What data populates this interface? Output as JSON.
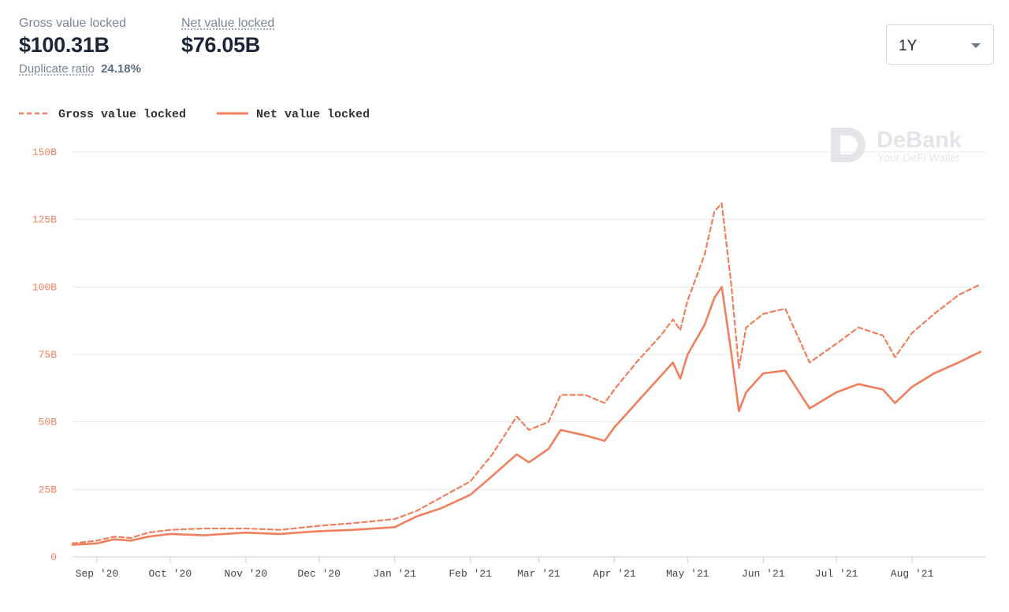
{
  "header": {
    "gross_label": "Gross value locked",
    "gross_value": "$100.31B",
    "net_label": "Net value locked",
    "net_value": "$76.05B",
    "duplicate_label": "Duplicate ratio",
    "duplicate_value": "24.18%"
  },
  "range_select": {
    "value": "1Y"
  },
  "watermark": {
    "brand": "DeBank",
    "tagline": "Your DeFi Wallet"
  },
  "colors": {
    "series": "#f07f5d",
    "grid": "#e6e8ec"
  },
  "chart_data": {
    "type": "line",
    "ylim": [
      0,
      150
    ],
    "yticks": [
      "0",
      "25B",
      "50B",
      "75B",
      "100B",
      "125B",
      "150B"
    ],
    "ytick_values": [
      0,
      25,
      50,
      75,
      100,
      125,
      150
    ],
    "xticks": [
      "Sep '20",
      "Oct '20",
      "Nov '20",
      "Dec '20",
      "Jan '21",
      "Feb '21",
      "Mar '21",
      "Apr '21",
      "May '21",
      "Jun '21",
      "Jul '21",
      "Aug '21"
    ],
    "xtick_dates": [
      "2020-09-01",
      "2020-10-01",
      "2020-11-01",
      "2020-12-01",
      "2021-01-01",
      "2021-02-01",
      "2021-03-01",
      "2021-04-01",
      "2021-05-01",
      "2021-06-01",
      "2021-07-01",
      "2021-08-01"
    ],
    "xlim": [
      "2020-08-22",
      "2021-08-31"
    ],
    "legend_position": "top-left",
    "grid": true,
    "series": [
      {
        "name": "Gross value locked",
        "style": "dashed",
        "points": [
          [
            "2020-08-22",
            5
          ],
          [
            "2020-09-01",
            6
          ],
          [
            "2020-09-08",
            7.5
          ],
          [
            "2020-09-15",
            7
          ],
          [
            "2020-09-22",
            9
          ],
          [
            "2020-10-01",
            10
          ],
          [
            "2020-10-15",
            10.5
          ],
          [
            "2020-11-01",
            10.5
          ],
          [
            "2020-11-15",
            10
          ],
          [
            "2020-12-01",
            11.5
          ],
          [
            "2020-12-15",
            12.5
          ],
          [
            "2021-01-01",
            14
          ],
          [
            "2021-01-10",
            17
          ],
          [
            "2021-01-20",
            22
          ],
          [
            "2021-02-01",
            28
          ],
          [
            "2021-02-10",
            38
          ],
          [
            "2021-02-20",
            52
          ],
          [
            "2021-02-25",
            47
          ],
          [
            "2021-03-05",
            50
          ],
          [
            "2021-03-10",
            60
          ],
          [
            "2021-03-20",
            60
          ],
          [
            "2021-03-28",
            57
          ],
          [
            "2021-04-01",
            62
          ],
          [
            "2021-04-10",
            72
          ],
          [
            "2021-04-20",
            82
          ],
          [
            "2021-04-25",
            88
          ],
          [
            "2021-04-28",
            84
          ],
          [
            "2021-05-01",
            95
          ],
          [
            "2021-05-08",
            112
          ],
          [
            "2021-05-12",
            128
          ],
          [
            "2021-05-15",
            131
          ],
          [
            "2021-05-19",
            100
          ],
          [
            "2021-05-22",
            70
          ],
          [
            "2021-05-25",
            85
          ],
          [
            "2021-06-01",
            90
          ],
          [
            "2021-06-10",
            92
          ],
          [
            "2021-06-20",
            72
          ],
          [
            "2021-07-01",
            79
          ],
          [
            "2021-07-10",
            85
          ],
          [
            "2021-07-20",
            82
          ],
          [
            "2021-07-25",
            74
          ],
          [
            "2021-08-01",
            83
          ],
          [
            "2021-08-10",
            90
          ],
          [
            "2021-08-20",
            97
          ],
          [
            "2021-08-29",
            101
          ]
        ]
      },
      {
        "name": "Net value locked",
        "style": "solid",
        "points": [
          [
            "2020-08-22",
            4.5
          ],
          [
            "2020-09-01",
            5
          ],
          [
            "2020-09-08",
            6.5
          ],
          [
            "2020-09-15",
            6
          ],
          [
            "2020-09-22",
            7.5
          ],
          [
            "2020-10-01",
            8.5
          ],
          [
            "2020-10-15",
            8
          ],
          [
            "2020-11-01",
            9
          ],
          [
            "2020-11-15",
            8.5
          ],
          [
            "2020-12-01",
            9.5
          ],
          [
            "2020-12-15",
            10
          ],
          [
            "2021-01-01",
            11
          ],
          [
            "2021-01-10",
            15
          ],
          [
            "2021-01-20",
            18
          ],
          [
            "2021-02-01",
            23
          ],
          [
            "2021-02-10",
            30
          ],
          [
            "2021-02-20",
            38
          ],
          [
            "2021-02-25",
            35
          ],
          [
            "2021-03-05",
            40
          ],
          [
            "2021-03-10",
            47
          ],
          [
            "2021-03-20",
            45
          ],
          [
            "2021-03-28",
            43
          ],
          [
            "2021-04-01",
            48
          ],
          [
            "2021-04-10",
            57
          ],
          [
            "2021-04-20",
            67
          ],
          [
            "2021-04-25",
            72
          ],
          [
            "2021-04-28",
            66
          ],
          [
            "2021-05-01",
            75
          ],
          [
            "2021-05-08",
            86
          ],
          [
            "2021-05-12",
            96
          ],
          [
            "2021-05-15",
            100
          ],
          [
            "2021-05-19",
            75
          ],
          [
            "2021-05-22",
            54
          ],
          [
            "2021-05-25",
            61
          ],
          [
            "2021-06-01",
            68
          ],
          [
            "2021-06-10",
            69
          ],
          [
            "2021-06-20",
            55
          ],
          [
            "2021-07-01",
            61
          ],
          [
            "2021-07-10",
            64
          ],
          [
            "2021-07-20",
            62
          ],
          [
            "2021-07-25",
            57
          ],
          [
            "2021-08-01",
            63
          ],
          [
            "2021-08-10",
            68
          ],
          [
            "2021-08-20",
            72
          ],
          [
            "2021-08-29",
            76
          ]
        ]
      }
    ]
  }
}
